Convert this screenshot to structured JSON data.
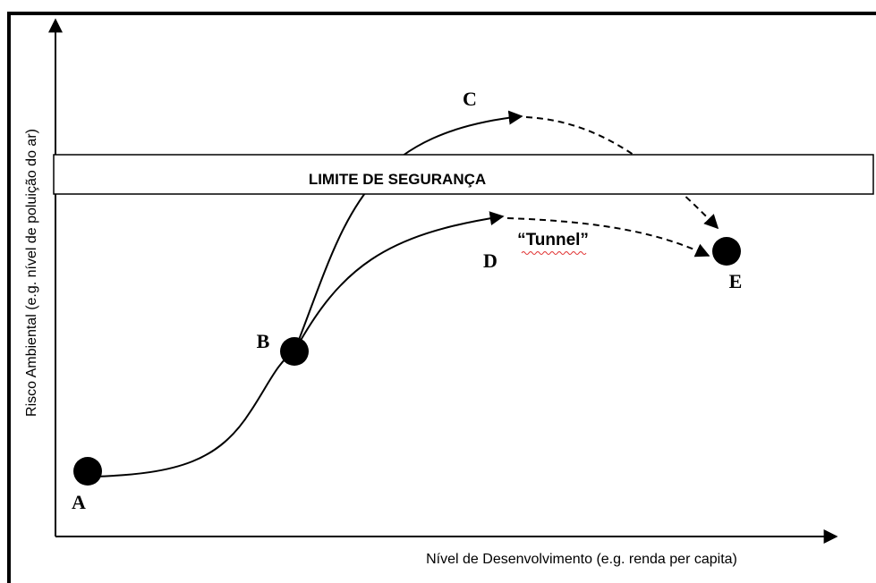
{
  "axes": {
    "y_label": "Risco Ambiental (e.g. nível de poluição do ar)",
    "x_label": "Nível de Desenvolvimento (e.g. renda per capita)"
  },
  "band": {
    "label": "LIMITE DE SEGURANÇA"
  },
  "nodes": [
    {
      "label": "A"
    },
    {
      "label": "B"
    },
    {
      "label": "C"
    },
    {
      "label": "D"
    },
    {
      "label": "E"
    }
  ],
  "annotation": {
    "label": "“Tunnel”"
  }
}
